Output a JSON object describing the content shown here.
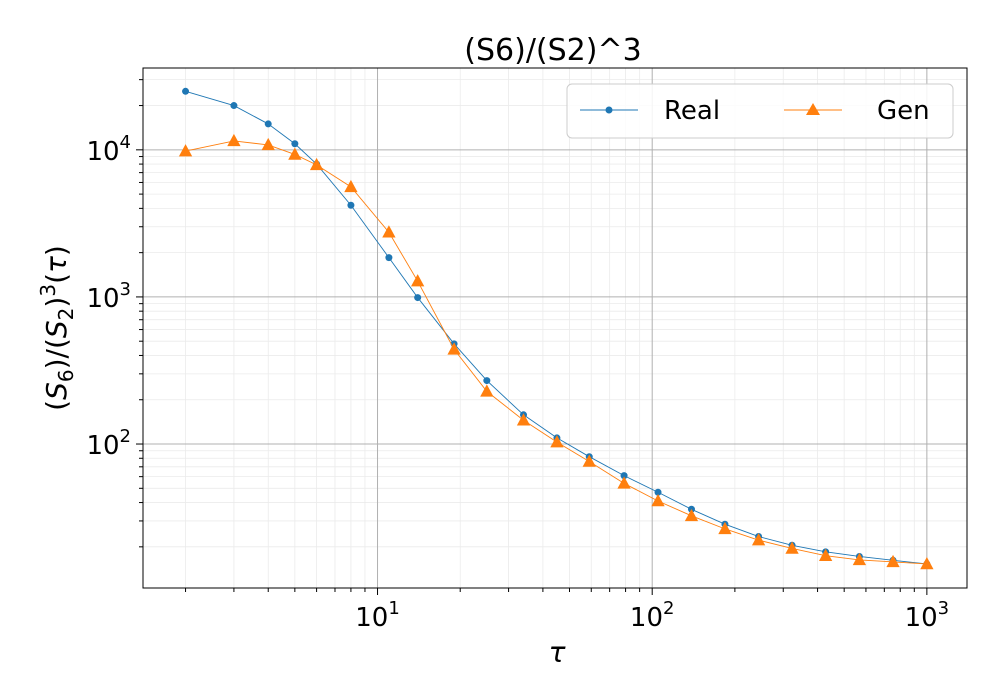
{
  "chart_data": {
    "type": "line",
    "title": "(S6)/(S2)^3",
    "xlabel": "τ",
    "ylabel": "(S6)/(S2)^3(τ)",
    "xscale": "log",
    "yscale": "log",
    "xlim": [
      1.4,
      1400
    ],
    "ylim": [
      10.5,
      36000
    ],
    "x_ticks": [
      10,
      100,
      1000
    ],
    "y_ticks": [
      100,
      1000,
      10000
    ],
    "grid": true,
    "legend_position": "top-right",
    "series": [
      {
        "name": "Real",
        "color": "#1f77b4",
        "marker": "circle",
        "x": [
          2,
          3,
          4,
          5,
          6,
          8,
          11,
          14,
          19,
          25,
          34,
          45,
          59,
          79,
          105,
          139,
          184,
          244,
          323,
          428,
          568,
          753,
          1000
        ],
        "y": [
          25000,
          20000,
          15000,
          11000,
          8000,
          4200,
          1850,
          990,
          480,
          270,
          158,
          110,
          82,
          61,
          47,
          36,
          28.5,
          23.5,
          20.5,
          18.5,
          17.2,
          16.2,
          15.3
        ]
      },
      {
        "name": "Gen",
        "color": "#ff7f0e",
        "marker": "triangle",
        "x": [
          2,
          3,
          4,
          5,
          6,
          8,
          11,
          14,
          19,
          25,
          34,
          45,
          59,
          79,
          105,
          139,
          184,
          244,
          323,
          428,
          568,
          753,
          1000
        ],
        "y": [
          9800,
          11500,
          10800,
          9300,
          7900,
          5600,
          2750,
          1280,
          440,
          228,
          145,
          103,
          76,
          54,
          41,
          32.5,
          26.5,
          22.2,
          19.5,
          17.4,
          16.3,
          15.8,
          15.3
        ]
      }
    ]
  }
}
